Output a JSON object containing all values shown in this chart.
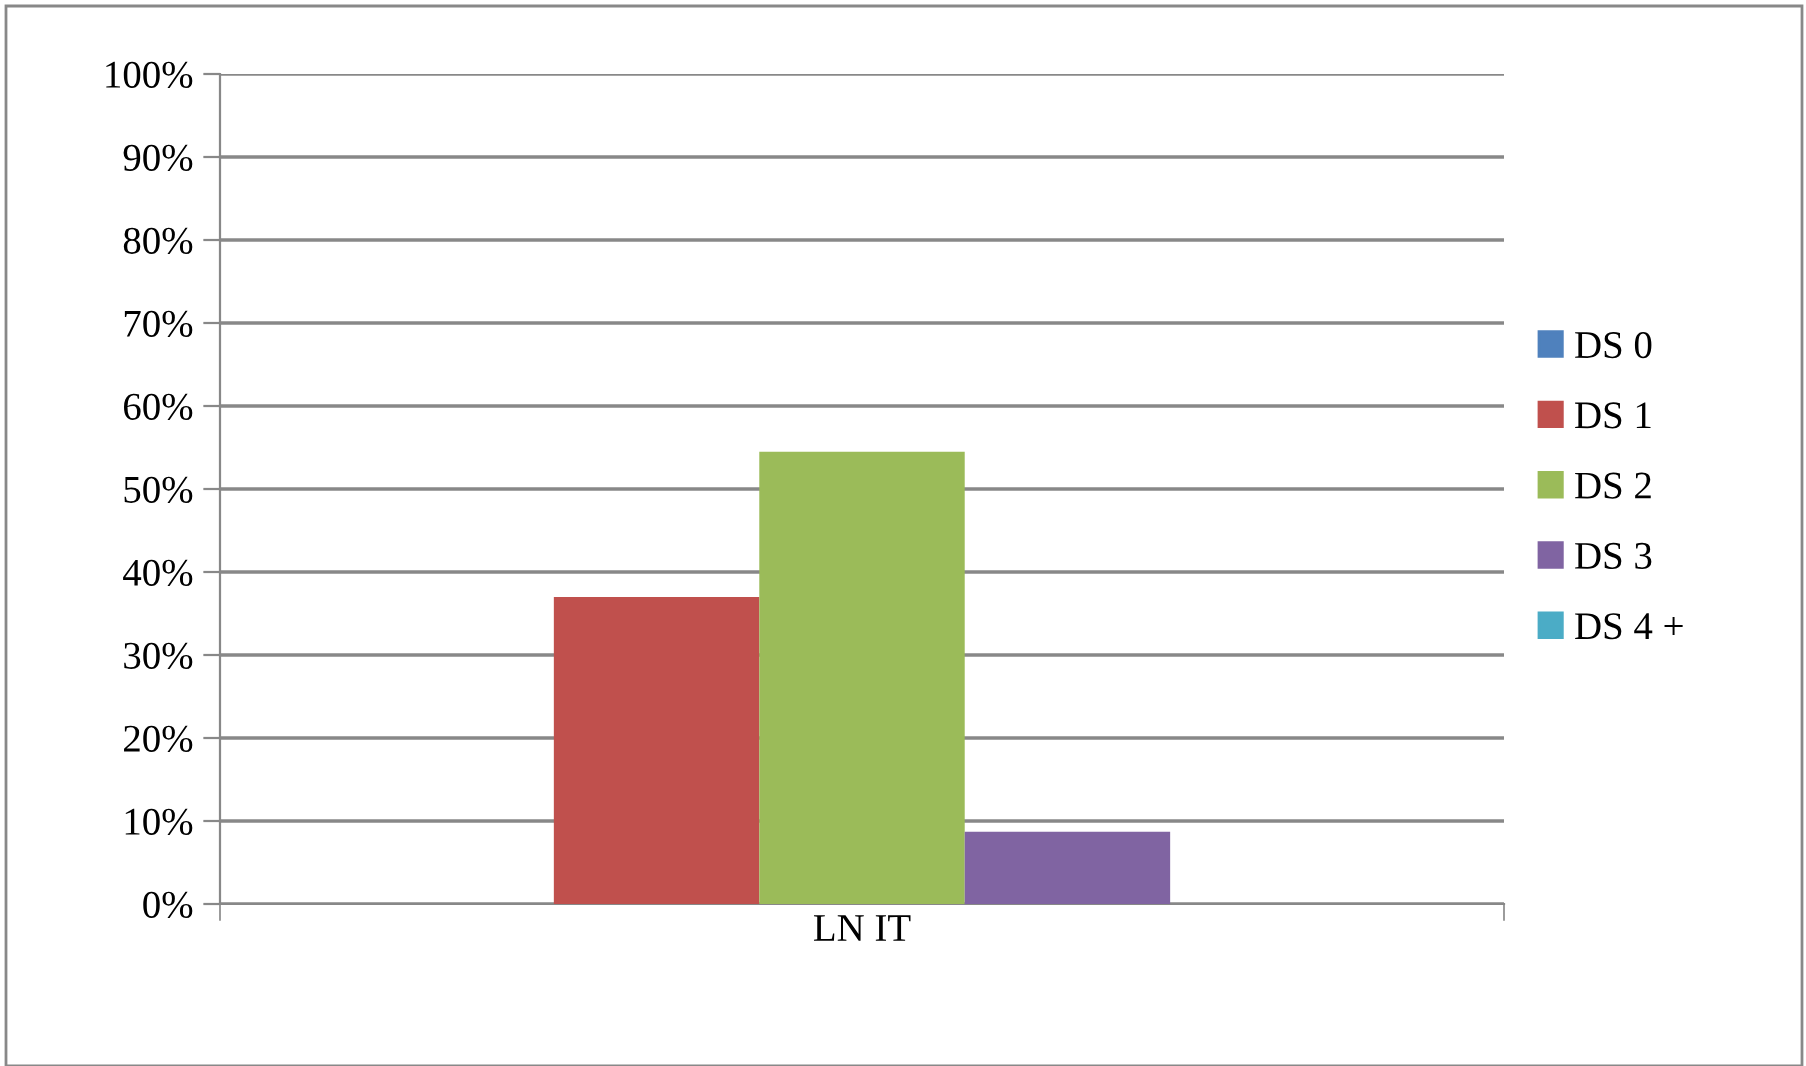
{
  "chart_data": {
    "type": "bar",
    "categories": [
      "LN IT"
    ],
    "series": [
      {
        "name": "DS 0",
        "color": "#4f81bd",
        "values": [
          0
        ]
      },
      {
        "name": "DS 1",
        "color": "#c0504d",
        "values": [
          37
        ]
      },
      {
        "name": "DS 2",
        "color": "#9bbb59",
        "values": [
          54.5
        ]
      },
      {
        "name": "DS 3",
        "color": "#8064a2",
        "values": [
          8.7
        ]
      },
      {
        "name": "DS 4 +",
        "color": "#4bacc6",
        "values": [
          0
        ]
      }
    ],
    "ylim": [
      0,
      100
    ],
    "yticks": [
      {
        "value": 0,
        "label": "0%"
      },
      {
        "value": 10,
        "label": "10%"
      },
      {
        "value": 20,
        "label": "20%"
      },
      {
        "value": 30,
        "label": "30%"
      },
      {
        "value": 40,
        "label": "40%"
      },
      {
        "value": 50,
        "label": "50%"
      },
      {
        "value": 60,
        "label": "60%"
      },
      {
        "value": 70,
        "label": "70%"
      },
      {
        "value": 80,
        "label": "80%"
      },
      {
        "value": 90,
        "label": "90%"
      },
      {
        "value": 100,
        "label": "100%"
      }
    ],
    "grid": "y",
    "legend": "right"
  }
}
